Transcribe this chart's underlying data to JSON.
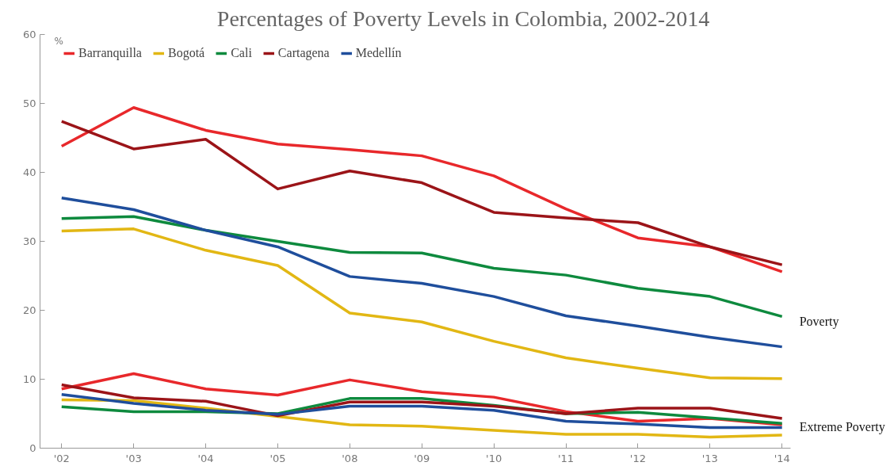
{
  "chart_data": {
    "type": "line",
    "title": "Percentages of Poverty Levels in Colombia, 2002-2014",
    "ylabel": "%",
    "categories": [
      "'02",
      "'03",
      "'04",
      "'05",
      "'08",
      "'09",
      "'10",
      "'11",
      "'12",
      "'13",
      "'14"
    ],
    "ylim": [
      0,
      60
    ],
    "yticks": [
      0,
      10,
      20,
      30,
      40,
      50,
      60
    ],
    "grid": false,
    "legend": "top left",
    "marker": "none",
    "line_style": "solid",
    "annotations": [
      "Poverty",
      "Extreme Poverty"
    ],
    "series": [
      {
        "name": "Barranquilla",
        "color": "#e8282b",
        "values": [
          43.8,
          49.4,
          46.1,
          44.1,
          43.3,
          42.4,
          39.5,
          34.7,
          30.5,
          29.2,
          25.6
        ]
      },
      {
        "name": "Bogotá",
        "color": "#e2b714",
        "values": [
          31.5,
          31.8,
          28.7,
          26.5,
          19.6,
          18.3,
          15.5,
          13.1,
          11.6,
          10.2,
          10.1
        ]
      },
      {
        "name": "Cali",
        "color": "#0e8a3e",
        "values": [
          33.3,
          33.6,
          31.6,
          30.0,
          28.4,
          28.3,
          26.1,
          25.1,
          23.2,
          22.0,
          19.1
        ]
      },
      {
        "name": "Cartagena",
        "color": "#9b1418",
        "values": [
          47.4,
          43.4,
          44.8,
          37.6,
          40.2,
          38.5,
          34.2,
          33.4,
          32.7,
          29.2,
          26.6
        ]
      },
      {
        "name": "Medellín",
        "color": "#1f4e9c",
        "values": [
          36.3,
          34.6,
          31.6,
          29.2,
          24.9,
          23.9,
          22.0,
          19.2,
          17.7,
          16.1,
          14.7
        ]
      },
      {
        "color": "#e8282b",
        "values": [
          8.6,
          10.8,
          8.6,
          7.7,
          9.9,
          8.2,
          7.4,
          5.3,
          3.9,
          4.3,
          3.4
        ]
      },
      {
        "color": "#e2b714",
        "values": [
          7.0,
          6.9,
          5.8,
          4.6,
          3.4,
          3.2,
          2.6,
          2.0,
          2.0,
          1.6,
          1.9
        ]
      },
      {
        "color": "#0e8a3e",
        "values": [
          6.0,
          5.3,
          5.3,
          5.0,
          7.2,
          7.2,
          6.2,
          5.0,
          5.2,
          4.4,
          3.6
        ]
      },
      {
        "color": "#9b1418",
        "values": [
          9.2,
          7.3,
          6.8,
          4.7,
          6.7,
          6.7,
          6.1,
          5.0,
          5.8,
          5.8,
          4.3
        ]
      },
      {
        "color": "#1f4e9c",
        "values": [
          7.8,
          6.5,
          5.5,
          4.9,
          6.1,
          6.1,
          5.5,
          3.9,
          3.5,
          3.0,
          3.0
        ]
      }
    ]
  }
}
